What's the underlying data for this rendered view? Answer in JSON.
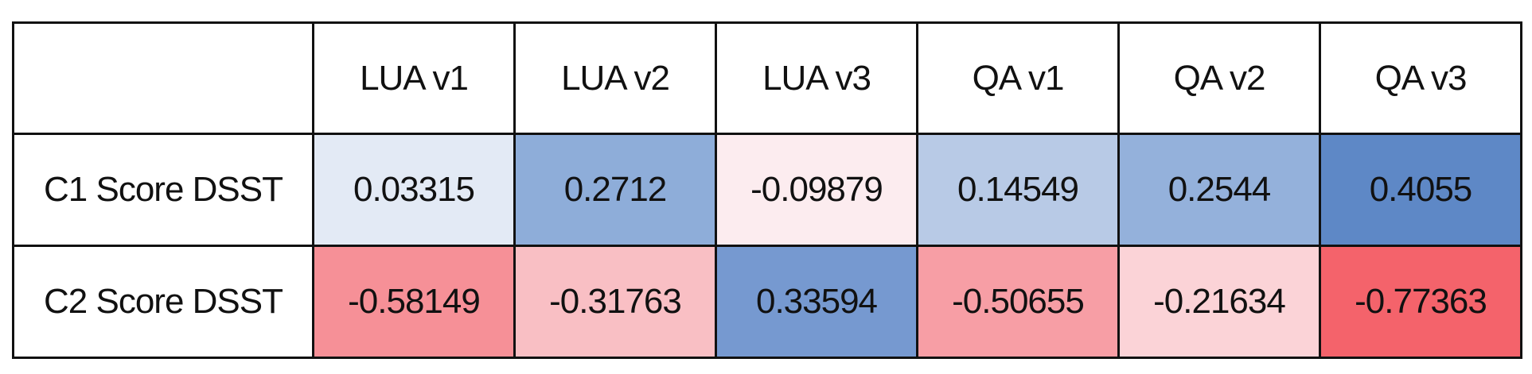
{
  "table": {
    "columns": [
      "LUA v1",
      "LUA v2",
      "LUA v3",
      "QA v1",
      "QA v2",
      "QA v3"
    ],
    "rows": [
      {
        "label": "C1 Score DSST",
        "values": [
          0.03315,
          0.2712,
          -0.09879,
          0.14549,
          0.2544,
          0.4055
        ],
        "colors": [
          "#e3eaf5",
          "#8eadd9",
          "#fcecef",
          "#b8cae6",
          "#94b1db",
          "#5e88c6"
        ]
      },
      {
        "label": "C2 Score DSST",
        "values": [
          -0.58149,
          -0.31763,
          0.33594,
          -0.50655,
          -0.21634,
          -0.77363
        ],
        "colors": [
          "#f69097",
          "#f9bfc4",
          "#7699d0",
          "#f79ea5",
          "#fbd3d7",
          "#f4636b"
        ]
      }
    ]
  }
}
